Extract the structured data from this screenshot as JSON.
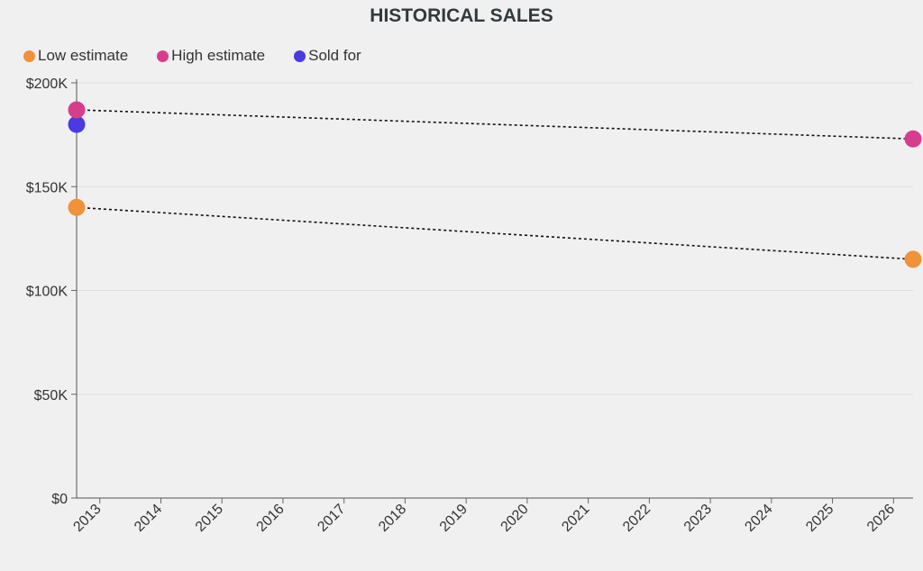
{
  "chart_data": {
    "type": "scatter",
    "title": "HISTORICAL SALES",
    "xlabel": "",
    "ylabel": "",
    "x_ticks": [
      "2013",
      "2014",
      "2015",
      "2016",
      "2017",
      "2018",
      "2019",
      "2020",
      "2021",
      "2022",
      "2023",
      "2024",
      "2025",
      "2026"
    ],
    "xlim": [
      2012.62,
      2026.32
    ],
    "ylim": [
      0,
      200000
    ],
    "y_ticks": [
      {
        "value": 0,
        "label": "$0"
      },
      {
        "value": 50000,
        "label": "$50K"
      },
      {
        "value": 100000,
        "label": "$100K"
      },
      {
        "value": 150000,
        "label": "$150K"
      },
      {
        "value": 200000,
        "label": "$200K"
      }
    ],
    "grid": true,
    "legend_position": "top-left",
    "series": [
      {
        "name": "Low estimate",
        "color": "#f0923a",
        "line": "dotted",
        "points": [
          {
            "x": 2012.62,
            "y": 140000
          },
          {
            "x": 2026.32,
            "y": 115000
          }
        ]
      },
      {
        "name": "High estimate",
        "color": "#d63d8d",
        "line": "dotted",
        "points": [
          {
            "x": 2012.62,
            "y": 187000
          },
          {
            "x": 2026.32,
            "y": 173000
          }
        ]
      },
      {
        "name": "Sold for",
        "color": "#4a3ae0",
        "line": "none",
        "points": [
          {
            "x": 2012.62,
            "y": 180000
          }
        ]
      }
    ]
  }
}
